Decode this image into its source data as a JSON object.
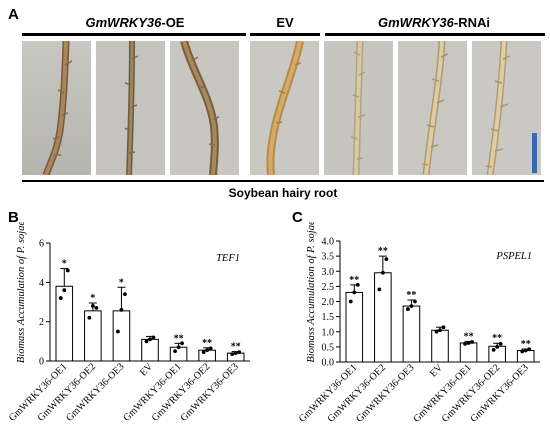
{
  "panelA": {
    "letter": "A",
    "groups": [
      {
        "italic": "GmWRKY36",
        "suffix": "-OE"
      },
      {
        "italic": "",
        "suffix": "EV"
      },
      {
        "italic": "GmWRKY36",
        "suffix": "-RNAi"
      }
    ],
    "caption": "Soybean hairy root",
    "scale_bar_color": "#3a66b6"
  },
  "panelB": {
    "letter": "B"
  },
  "panelC": {
    "letter": "C"
  },
  "chart_data": [
    {
      "type": "bar",
      "gene": "TEF1",
      "ylabel": "Biomass Accumulation of P. sojae",
      "ylim": [
        0,
        6
      ],
      "yticks": [
        0,
        2,
        4,
        6
      ],
      "categories": [
        "GmWRKY36-OE1",
        "GmWRKY36-OE2",
        "GmWRKY36-OE3",
        "EV",
        "GmWRKY36-OE1",
        "GmWRKY36-OE2",
        "GmWRKY36-OE3"
      ],
      "values": [
        3.8,
        2.55,
        2.55,
        1.1,
        0.7,
        0.55,
        0.4
      ],
      "errors": [
        0.9,
        0.4,
        1.2,
        0.15,
        0.2,
        0.12,
        0.08
      ],
      "points": [
        [
          3.2,
          3.6,
          4.6
        ],
        [
          2.2,
          2.8,
          2.7
        ],
        [
          1.5,
          2.6,
          3.4
        ],
        [
          1.0,
          1.1,
          1.2
        ],
        [
          0.5,
          0.7,
          0.9
        ],
        [
          0.45,
          0.55,
          0.65
        ],
        [
          0.35,
          0.4,
          0.45
        ]
      ],
      "significance": [
        "*",
        "*",
        "*",
        "",
        "**",
        "**",
        "**"
      ]
    },
    {
      "type": "bar",
      "gene": "PSPEL1",
      "ylabel": "Biomass Accumulation of P. sojae",
      "ylim": [
        0,
        4
      ],
      "yticks": [
        0.0,
        0.5,
        1.0,
        1.5,
        2.0,
        2.5,
        3.0,
        3.5,
        4.0
      ],
      "categories": [
        "GmWRKY36-OE1",
        "GmWRKY36-OE2",
        "GmWRKY36-OE3",
        "EV",
        "GmWRKY36-OE1",
        "GmWRKY36-OE2",
        "GmWRKY36-OE3"
      ],
      "values": [
        2.3,
        2.95,
        1.85,
        1.05,
        0.63,
        0.52,
        0.38
      ],
      "errors": [
        0.25,
        0.55,
        0.2,
        0.1,
        0.05,
        0.1,
        0.05
      ],
      "points": [
        [
          2.0,
          2.3,
          2.55
        ],
        [
          2.4,
          2.95,
          3.4
        ],
        [
          1.75,
          1.85,
          2.0
        ],
        [
          1.0,
          1.05,
          1.15
        ],
        [
          0.6,
          0.63,
          0.66
        ],
        [
          0.4,
          0.5,
          0.6
        ],
        [
          0.35,
          0.38,
          0.42
        ]
      ],
      "significance": [
        "**",
        "**",
        "**",
        "",
        "**",
        "**",
        "**"
      ]
    }
  ]
}
